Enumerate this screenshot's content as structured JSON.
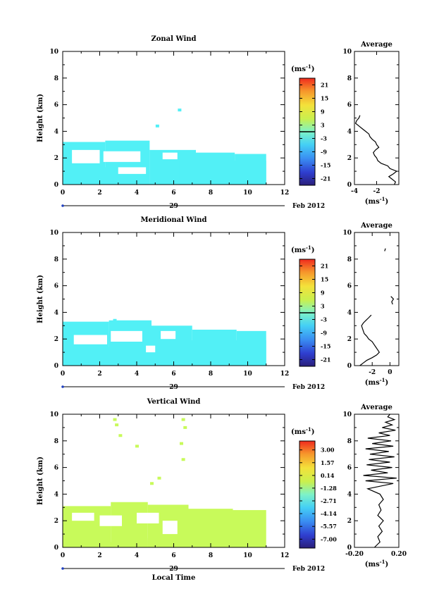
{
  "date_label": "Feb 2012",
  "day_label": "29",
  "unit_label": "(ms",
  "unit_exp": "-1",
  "unit_close": ")",
  "chart_data": [
    {
      "type": "heatmap",
      "title": "Zonal Wind",
      "ylabel": "Height (km)",
      "xlabel": "",
      "xlim": [
        0,
        12
      ],
      "ylim": [
        0,
        10
      ],
      "xticks": [
        "0",
        "2",
        "4",
        "6",
        "8",
        "10",
        "12"
      ],
      "yticks": [
        "0",
        "2",
        "4",
        "6",
        "8",
        "10"
      ],
      "colorbar_ticks": [
        "21",
        "15",
        "9",
        "3",
        "-3",
        "-9",
        "-15",
        "-21"
      ],
      "colorbar_range": [
        -24,
        24
      ],
      "zero_line_at": 0,
      "fill": "#52f0f6",
      "cells": [
        [
          0.0,
          2.3,
          3.2
        ],
        [
          2.3,
          4.7,
          3.3
        ],
        [
          4.7,
          7.2,
          2.6
        ],
        [
          7.2,
          9.3,
          2.4
        ],
        [
          9.3,
          11.0,
          2.3
        ],
        [
          0.4,
          1.6,
          1.1
        ],
        [
          1.6,
          3.6,
          1.3
        ],
        [
          4.7,
          5.3,
          1.0
        ],
        [
          5.3,
          6.3,
          1.7
        ],
        [
          6.3,
          11.0,
          1.8
        ]
      ],
      "clearings": [
        [
          0.5,
          2.0,
          1.6,
          2.6
        ],
        [
          2.2,
          4.2,
          1.7,
          2.5
        ],
        [
          5.4,
          6.2,
          1.9,
          2.4
        ],
        [
          3.0,
          4.5,
          0.8,
          1.3
        ]
      ],
      "isolated": [
        [
          5.1,
          4.4
        ],
        [
          6.3,
          5.6
        ],
        [
          3.2,
          0.6
        ]
      ],
      "profile": {
        "title": "Average",
        "xlim": [
          -4,
          0
        ],
        "xticks": [
          "-4",
          "-2"
        ],
        "tick_values": [
          -4,
          -2
        ],
        "heights": [
          0.0,
          0.2,
          0.4,
          0.6,
          0.8,
          1.0,
          1.2,
          1.4,
          1.6,
          1.8,
          2.0,
          2.2,
          2.4,
          2.6,
          2.8,
          3.0,
          3.2,
          3.4,
          3.6,
          3.8,
          4.0,
          4.2,
          4.4,
          4.6,
          4.8,
          5.0,
          5.2
        ],
        "values": [
          -0.4,
          -0.3,
          -0.6,
          -0.9,
          -0.5,
          -0.2,
          -0.8,
          -1.0,
          -1.6,
          -1.9,
          -2.0,
          -2.2,
          -2.3,
          -2.1,
          -1.8,
          -2.0,
          -2.1,
          -2.4,
          -2.6,
          -2.7,
          -3.0,
          -3.3,
          -3.6,
          -3.9,
          -3.8,
          -3.6,
          -3.5
        ]
      }
    },
    {
      "type": "heatmap",
      "title": "Meridional Wind",
      "ylabel": "Height (km)",
      "xlabel": "",
      "xlim": [
        0,
        12
      ],
      "ylim": [
        0,
        10
      ],
      "xticks": [
        "0",
        "2",
        "4",
        "6",
        "8",
        "10",
        "12"
      ],
      "yticks": [
        "0",
        "2",
        "4",
        "6",
        "8",
        "10"
      ],
      "colorbar_ticks": [
        "21",
        "15",
        "9",
        "3",
        "-3",
        "-9",
        "-15",
        "-21"
      ],
      "colorbar_range": [
        -24,
        24
      ],
      "zero_line_at": 0,
      "fill": "#52f0f6",
      "cells": [
        [
          0.0,
          2.5,
          3.3
        ],
        [
          2.5,
          4.8,
          3.4
        ],
        [
          4.8,
          7.0,
          3.0
        ],
        [
          7.0,
          9.4,
          2.7
        ],
        [
          9.4,
          11.0,
          2.6
        ],
        [
          0.3,
          1.8,
          1.2
        ],
        [
          1.8,
          3.5,
          1.4
        ],
        [
          4.2,
          5.2,
          1.0
        ],
        [
          5.2,
          6.2,
          1.5
        ],
        [
          6.2,
          11.0,
          1.9
        ]
      ],
      "clearings": [
        [
          0.6,
          2.4,
          1.6,
          2.3
        ],
        [
          2.6,
          4.3,
          1.8,
          2.6
        ],
        [
          5.3,
          6.1,
          2.0,
          2.6
        ],
        [
          4.5,
          5.0,
          1.0,
          1.5
        ]
      ],
      "isolated": [
        [
          2.8,
          3.4
        ],
        [
          4.4,
          3.2
        ]
      ],
      "profile": {
        "title": "Average",
        "xlim": [
          -4,
          1
        ],
        "xticks": [
          "-2",
          "0"
        ],
        "tick_values": [
          -2,
          0
        ],
        "heights": [
          0.0,
          0.2,
          0.4,
          0.6,
          0.8,
          1.0,
          1.2,
          1.4,
          1.6,
          1.8,
          2.0,
          2.2,
          2.4,
          2.6,
          2.8,
          3.0,
          3.2,
          3.4,
          3.6,
          3.8,
          4.6,
          4.8,
          5.0,
          5.2,
          8.6,
          8.8
        ],
        "values": [
          -3.4,
          -3.0,
          -2.6,
          -2.0,
          -1.5,
          -1.2,
          -1.4,
          -1.6,
          -1.8,
          -2.0,
          -2.4,
          -2.6,
          -2.9,
          -3.0,
          -3.1,
          -3.2,
          -3.0,
          -2.7,
          -2.4,
          -2.1,
          0.3,
          0.2,
          0.4,
          0.1,
          -0.6,
          -0.5
        ]
      }
    },
    {
      "type": "heatmap",
      "title": "Vertical Wind",
      "ylabel": "Height (km)",
      "xlabel": "Local Time",
      "xlim": [
        0,
        12
      ],
      "ylim": [
        0,
        10
      ],
      "xticks": [
        "0",
        "2",
        "4",
        "6",
        "8",
        "10",
        "12"
      ],
      "yticks": [
        "0",
        "2",
        "4",
        "6",
        "8",
        "10"
      ],
      "colorbar_ticks": [
        "3.00",
        "1.57",
        "0.14",
        "-1.28",
        "-2.71",
        "-4.14",
        "-5.57",
        "-7.00"
      ],
      "colorbar_range": [
        -8,
        4
      ],
      "zero_line_at": null,
      "fill": "#c8fa5a",
      "cells": [
        [
          0.0,
          2.6,
          3.1
        ],
        [
          2.6,
          4.6,
          3.4
        ],
        [
          4.6,
          6.8,
          3.2
        ],
        [
          6.8,
          9.2,
          2.9
        ],
        [
          9.2,
          11.0,
          2.8
        ],
        [
          0.2,
          2.4,
          0.2
        ],
        [
          2.4,
          3.6,
          0.4
        ],
        [
          3.6,
          4.6,
          0.7
        ],
        [
          4.6,
          6.2,
          0.5
        ],
        [
          6.2,
          11.0,
          0.1
        ]
      ],
      "clearings": [
        [
          0.5,
          1.7,
          2.0,
          2.6
        ],
        [
          2.0,
          3.2,
          1.6,
          2.4
        ],
        [
          4.0,
          5.2,
          1.8,
          2.6
        ],
        [
          5.4,
          6.2,
          1.0,
          2.0
        ]
      ],
      "isolated": [
        [
          2.8,
          9.6
        ],
        [
          2.9,
          9.2
        ],
        [
          3.1,
          8.4
        ],
        [
          6.5,
          9.6
        ],
        [
          6.6,
          9.0
        ],
        [
          6.4,
          7.8
        ],
        [
          6.5,
          6.6
        ],
        [
          4.0,
          7.6
        ],
        [
          5.2,
          5.2
        ],
        [
          4.8,
          4.8
        ]
      ],
      "profile": {
        "title": "Average",
        "xlim": [
          -0.2,
          0.2
        ],
        "xticks": [
          "-0.20",
          "0.20"
        ],
        "tick_values": [
          -0.2,
          0.2
        ],
        "heights": [
          0.0,
          0.4,
          0.8,
          1.2,
          1.6,
          2.0,
          2.4,
          2.8,
          3.2,
          3.6,
          4.0,
          4.4,
          4.8,
          5.0,
          5.2,
          5.4,
          5.6,
          5.8,
          6.0,
          6.2,
          6.4,
          6.6,
          6.8,
          7.0,
          7.2,
          7.4,
          7.6,
          7.8,
          8.0,
          8.2,
          8.4,
          8.6,
          8.8,
          9.0,
          9.2,
          9.4,
          9.6,
          9.8,
          10.0
        ],
        "values": [
          -0.02,
          0.03,
          0.01,
          0.05,
          0.02,
          0.06,
          0.01,
          0.04,
          0.02,
          0.06,
          0.03,
          -0.08,
          0.15,
          -0.1,
          0.18,
          -0.12,
          0.1,
          -0.05,
          0.14,
          -0.09,
          0.12,
          -0.07,
          0.16,
          -0.06,
          0.11,
          -0.1,
          0.15,
          -0.04,
          0.13,
          -0.08,
          0.12,
          0.02,
          0.17,
          0.05,
          0.14,
          0.08,
          0.16,
          0.1,
          0.12
        ]
      }
    }
  ]
}
